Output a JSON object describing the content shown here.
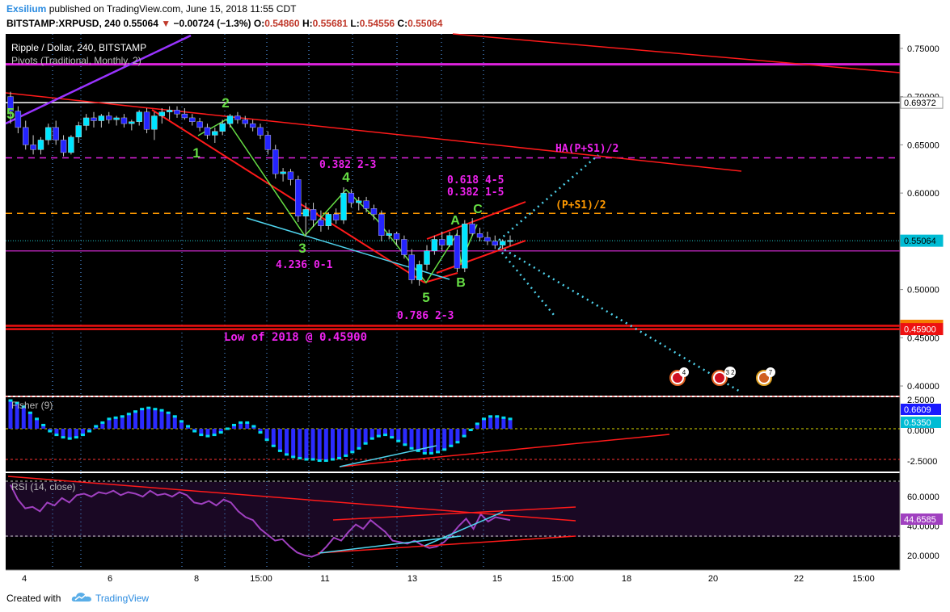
{
  "header": {
    "author": "Exsilium",
    "published": "published on TradingView.com, June 15, 2018 11:55 CDT",
    "symbol": "BITSTAMP:XRPUSD, 240",
    "last": "0.55064",
    "change": "−0.00724 (−1.3%)",
    "o_label": "O:",
    "o_value": "0.54860",
    "h_label": "H:",
    "h_value": "0.55681",
    "l_label": "L:",
    "l_value": "0.54556",
    "c_label": "C:",
    "c_value": "0.55064"
  },
  "footer": {
    "created": "Created with",
    "brand": "TradingView"
  },
  "colors": {
    "background": "#000000",
    "candle_up": "#00e5ff",
    "candle_down": "#2424ff",
    "trend_red": "#ff1a1a",
    "wave_green": "#66dd44",
    "cyan_line": "#4fd4ee",
    "magenta_text": "#ee22ee",
    "orange": "#ff9900",
    "purple": "#9933ff",
    "rsi_line": "#a040c0",
    "fisher_bar": "#2b2bff"
  },
  "chart_data": {
    "type": "candlestick",
    "title": "Ripple / Dollar, 240, BITSTAMP",
    "subtitle": "Pivots (Traditional, Monthly, 2)",
    "x_labels": [
      "4",
      "6",
      "8",
      "15:00",
      "11",
      "13",
      "15",
      "15:00",
      "18",
      "20",
      "22",
      "15:00"
    ],
    "y_ticks": [
      "0.75000",
      "0.70000",
      "0.65000",
      "0.60000",
      "0.55000",
      "0.50000",
      "0.45000",
      "0.40000"
    ],
    "ylim": [
      0.39,
      0.765
    ],
    "price_badges": [
      {
        "value": "0.69372",
        "price": 0.6937,
        "color": "#ffffff",
        "text_color": "#000000"
      },
      {
        "value": "0.55064",
        "price": 0.5506,
        "color": "#00bcd4",
        "text_color": "#000000"
      },
      {
        "value": "0.46244",
        "price": 0.4624,
        "color": "#f57c00",
        "text_color": "#ffffff"
      },
      {
        "value": "0.45900",
        "price": 0.459,
        "color": "#ee1111",
        "text_color": "#ffffff"
      }
    ],
    "pivot_lines": [
      {
        "price": 0.7335,
        "color": "#dd22dd",
        "style": "solid"
      },
      {
        "price": 0.6937,
        "color": "#ffffff",
        "style": "solid"
      },
      {
        "price": 0.6365,
        "color": "#dd22dd",
        "style": "dashed"
      },
      {
        "price": 0.579,
        "color": "#ff9900",
        "style": "dashed"
      },
      {
        "price": 0.54,
        "color": "#aa22aa",
        "style": "solid"
      },
      {
        "price": 0.4624,
        "color": "#ee1111",
        "style": "solid"
      },
      {
        "price": 0.459,
        "color": "#ee1111",
        "style": "solid"
      }
    ],
    "candles": [
      [
        0.7,
        0.705,
        0.672,
        0.685
      ],
      [
        0.685,
        0.69,
        0.662,
        0.668
      ],
      [
        0.668,
        0.675,
        0.645,
        0.65
      ],
      [
        0.65,
        0.66,
        0.64,
        0.645
      ],
      [
        0.645,
        0.658,
        0.64,
        0.655
      ],
      [
        0.655,
        0.672,
        0.65,
        0.668
      ],
      [
        0.668,
        0.675,
        0.65,
        0.655
      ],
      [
        0.655,
        0.66,
        0.638,
        0.642
      ],
      [
        0.642,
        0.66,
        0.64,
        0.658
      ],
      [
        0.658,
        0.674,
        0.652,
        0.67
      ],
      [
        0.67,
        0.682,
        0.665,
        0.678
      ],
      [
        0.678,
        0.684,
        0.668,
        0.675
      ],
      [
        0.675,
        0.682,
        0.668,
        0.68
      ],
      [
        0.68,
        0.684,
        0.672,
        0.676
      ],
      [
        0.676,
        0.68,
        0.67,
        0.678
      ],
      [
        0.678,
        0.682,
        0.668,
        0.672
      ],
      [
        0.672,
        0.676,
        0.665,
        0.674
      ],
      [
        0.674,
        0.686,
        0.67,
        0.684
      ],
      [
        0.684,
        0.688,
        0.662,
        0.666
      ],
      [
        0.666,
        0.684,
        0.655,
        0.68
      ],
      [
        0.68,
        0.688,
        0.672,
        0.684
      ],
      [
        0.684,
        0.69,
        0.676,
        0.686
      ],
      [
        0.686,
        0.69,
        0.678,
        0.682
      ],
      [
        0.682,
        0.688,
        0.676,
        0.678
      ],
      [
        0.678,
        0.682,
        0.67,
        0.674
      ],
      [
        0.674,
        0.678,
        0.664,
        0.668
      ],
      [
        0.668,
        0.672,
        0.656,
        0.66
      ],
      [
        0.66,
        0.668,
        0.652,
        0.664
      ],
      [
        0.664,
        0.676,
        0.66,
        0.672
      ],
      [
        0.672,
        0.682,
        0.668,
        0.68
      ],
      [
        0.68,
        0.684,
        0.672,
        0.676
      ],
      [
        0.676,
        0.68,
        0.668,
        0.672
      ],
      [
        0.672,
        0.676,
        0.664,
        0.668
      ],
      [
        0.668,
        0.672,
        0.656,
        0.66
      ],
      [
        0.66,
        0.664,
        0.64,
        0.645
      ],
      [
        0.645,
        0.65,
        0.615,
        0.62
      ],
      [
        0.62,
        0.626,
        0.612,
        0.622
      ],
      [
        0.622,
        0.625,
        0.608,
        0.614
      ],
      [
        0.614,
        0.618,
        0.57,
        0.576
      ],
      [
        0.576,
        0.59,
        0.555,
        0.583
      ],
      [
        0.583,
        0.59,
        0.565,
        0.572
      ],
      [
        0.572,
        0.582,
        0.56,
        0.566
      ],
      [
        0.566,
        0.58,
        0.562,
        0.578
      ],
      [
        0.578,
        0.584,
        0.568,
        0.572
      ],
      [
        0.572,
        0.606,
        0.568,
        0.6
      ],
      [
        0.6,
        0.604,
        0.585,
        0.59
      ],
      [
        0.59,
        0.596,
        0.582,
        0.592
      ],
      [
        0.592,
        0.596,
        0.58,
        0.584
      ],
      [
        0.584,
        0.588,
        0.572,
        0.578
      ],
      [
        0.578,
        0.582,
        0.55,
        0.556
      ],
      [
        0.556,
        0.562,
        0.552,
        0.558
      ],
      [
        0.558,
        0.56,
        0.546,
        0.552
      ],
      [
        0.552,
        0.556,
        0.532,
        0.536
      ],
      [
        0.536,
        0.542,
        0.506,
        0.51
      ],
      [
        0.51,
        0.53,
        0.504,
        0.526
      ],
      [
        0.526,
        0.546,
        0.52,
        0.54
      ],
      [
        0.54,
        0.556,
        0.536,
        0.552
      ],
      [
        0.552,
        0.56,
        0.54,
        0.546
      ],
      [
        0.546,
        0.56,
        0.544,
        0.556
      ],
      [
        0.556,
        0.562,
        0.518,
        0.522
      ],
      [
        0.522,
        0.572,
        0.518,
        0.568
      ],
      [
        0.568,
        0.574,
        0.556,
        0.558
      ],
      [
        0.558,
        0.564,
        0.55,
        0.554
      ],
      [
        0.554,
        0.56,
        0.546,
        0.55
      ],
      [
        0.55,
        0.556,
        0.542,
        0.546
      ],
      [
        0.546,
        0.552,
        0.542,
        0.55
      ],
      [
        0.55,
        0.556,
        0.545,
        0.551
      ]
    ],
    "annotations": [
      {
        "text": "5",
        "color": "#66dd44"
      },
      {
        "text": "1",
        "color": "#66dd44"
      },
      {
        "text": "2",
        "color": "#66dd44"
      },
      {
        "text": "3",
        "color": "#66dd44"
      },
      {
        "text": "4",
        "color": "#66dd44"
      },
      {
        "text": "5",
        "color": "#66dd44"
      },
      {
        "text": "A",
        "color": "#66dd44"
      },
      {
        "text": "B",
        "color": "#66dd44"
      },
      {
        "text": "C",
        "color": "#66dd44"
      },
      {
        "text": "0.382 2-3",
        "color": "#ee22ee"
      },
      {
        "text": "0.618 4-5",
        "color": "#ee22ee"
      },
      {
        "text": "0.382 1-5",
        "color": "#ee22ee"
      },
      {
        "text": "4.236 0-1",
        "color": "#ee22ee"
      },
      {
        "text": "0.786 2-3",
        "color": "#ee22ee"
      },
      {
        "text": "Low of 2018 @ 0.45900",
        "color": "#ee22ee"
      },
      {
        "text": "HA(P+S1)/2",
        "color": "#ee22ee"
      },
      {
        "text": "(P+S1)/2",
        "color": "#ff9900"
      }
    ],
    "events": [
      "4",
      "3 2",
      "7"
    ],
    "fisher": {
      "title": "Fisher (9)",
      "y_ticks": [
        "2.5000",
        "0.0000",
        "-2.5000"
      ],
      "ylim": [
        -3.0,
        3.0
      ],
      "badges": [
        {
          "value": "0.6609",
          "color": "#1a1aff"
        },
        {
          "value": "0.5350",
          "color": "#00bcd4"
        }
      ],
      "values": [
        2.3,
        2.1,
        1.8,
        1.3,
        0.8,
        0.3,
        -0.2,
        -0.5,
        -0.7,
        -0.8,
        -0.7,
        -0.5,
        -0.2,
        0.2,
        0.5,
        0.8,
        0.9,
        1.0,
        1.2,
        1.4,
        1.6,
        1.7,
        1.6,
        1.5,
        1.3,
        1.0,
        0.6,
        0.2,
        -0.2,
        -0.5,
        -0.6,
        -0.5,
        -0.3,
        0.0,
        0.3,
        0.5,
        0.5,
        0.2,
        -0.3,
        -0.9,
        -1.4,
        -1.8,
        -2.1,
        -2.3,
        -2.4,
        -2.5,
        -2.5,
        -2.6,
        -2.6,
        -2.5,
        -2.4,
        -2.2,
        -1.9,
        -1.6,
        -1.2,
        -0.8,
        -0.6,
        -0.5,
        -0.7,
        -1.0,
        -1.3,
        -1.6,
        -1.8,
        -2.0,
        -2.0,
        -1.9,
        -1.7,
        -1.4,
        -1.1,
        -0.6,
        -0.1,
        0.4,
        0.8,
        1.0,
        1.0,
        0.9,
        0.8
      ]
    },
    "rsi": {
      "title": "RSI (14, close)",
      "y_ticks": [
        "60.0000",
        "40.0000",
        "20.0000"
      ],
      "ylim": [
        10,
        76
      ],
      "badge": {
        "value": "44.6585",
        "color": "#a040c0"
      },
      "values": [
        68,
        58,
        52,
        53,
        50,
        56,
        54,
        59,
        56,
        61,
        62,
        60,
        63,
        62,
        64,
        61,
        63,
        62,
        60,
        64,
        61,
        62,
        60,
        63,
        61,
        56,
        55,
        57,
        54,
        58,
        56,
        50,
        46,
        44,
        38,
        34,
        30,
        31,
        26,
        22,
        20,
        19,
        21,
        26,
        32,
        30,
        36,
        41,
        38,
        44,
        40,
        36,
        30,
        29,
        28,
        30,
        27,
        25,
        26,
        29,
        34,
        40,
        45,
        38,
        48,
        43,
        46,
        45,
        44
      ]
    }
  }
}
